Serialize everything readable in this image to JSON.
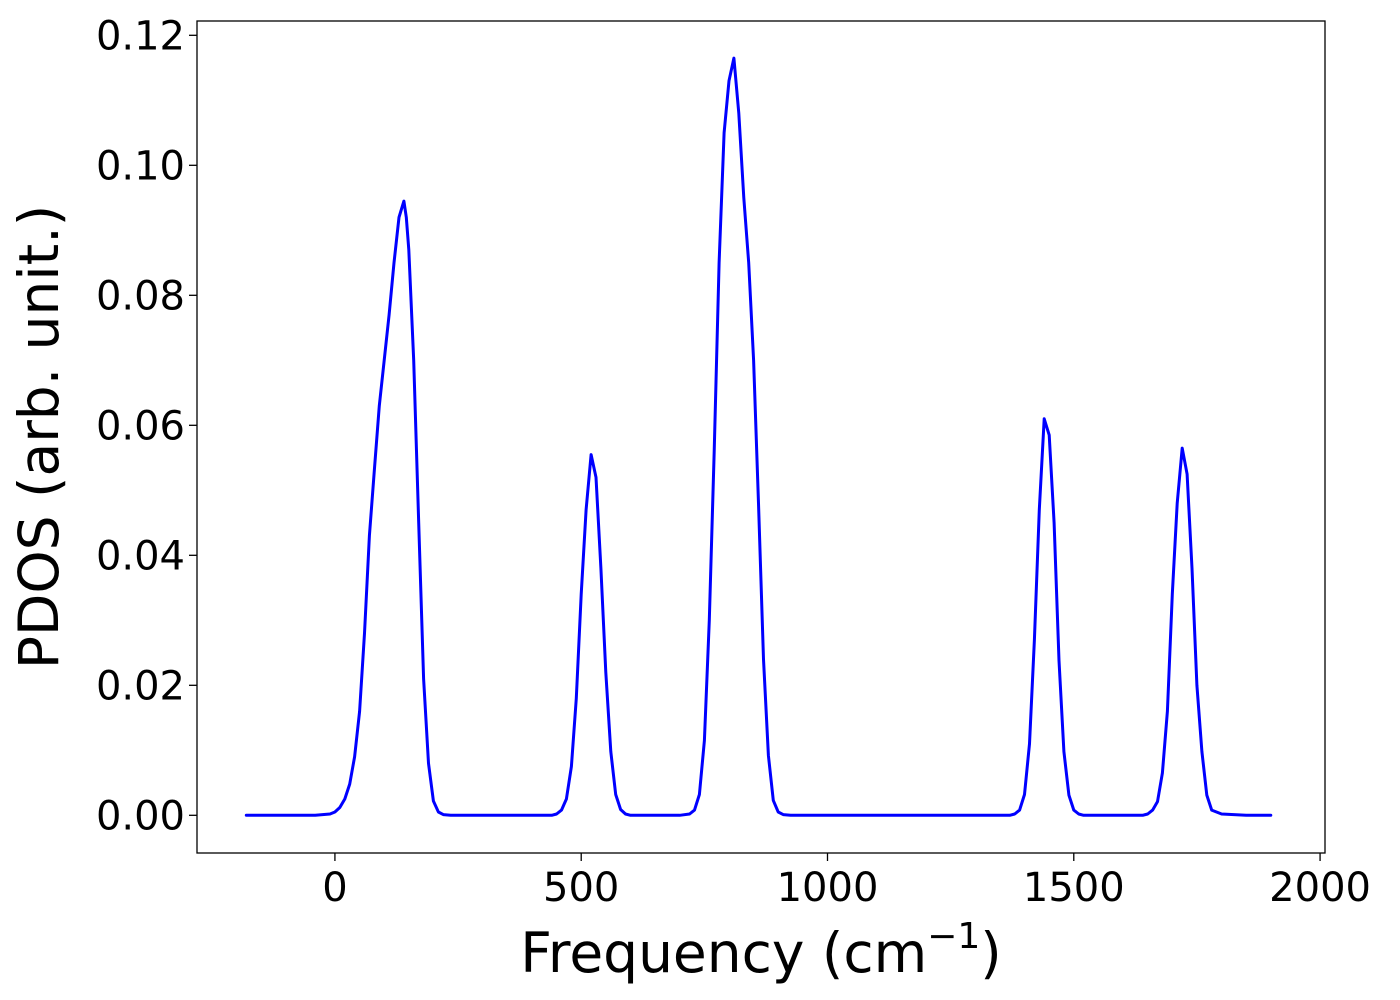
{
  "chart_data": {
    "type": "line",
    "xlabel": "Frequency (cm",
    "xlabel_superscript": "−1",
    "xlabel_close": ")",
    "ylabel": "PDOS (arb. unit.)",
    "xlim": [
      -280,
      2010
    ],
    "ylim": [
      -0.0058,
      0.1222
    ],
    "grid": false,
    "legend": "none",
    "x_ticks": [
      0,
      500,
      1000,
      1500,
      2000
    ],
    "y_ticks": [
      0.0,
      0.02,
      0.04,
      0.06,
      0.08,
      0.1,
      0.12
    ],
    "y_tick_decimals": 2,
    "colors": {
      "line": "#0000ff",
      "axes": "#000000",
      "background": "#ffffff"
    },
    "series": [
      {
        "x": [
          -180,
          -100,
          -40,
          -10,
          0,
          10,
          20,
          30,
          40,
          50,
          60,
          70,
          80,
          90,
          100,
          110,
          120,
          130,
          140,
          145,
          150,
          160,
          170,
          180,
          190,
          200,
          210,
          220,
          235,
          250,
          300,
          350,
          400,
          440,
          450,
          460,
          470,
          480,
          490,
          500,
          510,
          520,
          530,
          540,
          550,
          560,
          570,
          580,
          590,
          600,
          620,
          650,
          700,
          720,
          730,
          740,
          750,
          760,
          770,
          780,
          790,
          800,
          810,
          820,
          830,
          840,
          850,
          860,
          870,
          880,
          890,
          900,
          910,
          925,
          950,
          1000,
          1100,
          1200,
          1300,
          1370,
          1380,
          1390,
          1400,
          1410,
          1420,
          1430,
          1440,
          1450,
          1460,
          1470,
          1480,
          1490,
          1500,
          1510,
          1520,
          1540,
          1600,
          1640,
          1650,
          1660,
          1670,
          1680,
          1690,
          1700,
          1710,
          1720,
          1730,
          1740,
          1750,
          1760,
          1770,
          1780,
          1800,
          1850,
          1900
        ],
        "y": [
          0,
          0,
          0,
          0.0002,
          0.0005,
          0.0012,
          0.0025,
          0.0048,
          0.009,
          0.016,
          0.028,
          0.043,
          0.053,
          0.063,
          0.07,
          0.077,
          0.085,
          0.092,
          0.0945,
          0.092,
          0.087,
          0.07,
          0.045,
          0.021,
          0.008,
          0.0022,
          0.0005,
          0.0001,
          0,
          0,
          0,
          0,
          0,
          0,
          0.0002,
          0.0008,
          0.0025,
          0.0075,
          0.018,
          0.034,
          0.047,
          0.0555,
          0.052,
          0.038,
          0.022,
          0.0098,
          0.0032,
          0.0009,
          0.0002,
          0,
          0,
          0,
          0,
          0.0002,
          0.0008,
          0.0032,
          0.0115,
          0.03,
          0.056,
          0.085,
          0.105,
          0.113,
          0.1165,
          0.108,
          0.095,
          0.085,
          0.07,
          0.048,
          0.024,
          0.0092,
          0.0023,
          0.0005,
          0.0001,
          0,
          0,
          0,
          0,
          0,
          0,
          0,
          0.0002,
          0.0008,
          0.0032,
          0.011,
          0.027,
          0.047,
          0.061,
          0.0585,
          0.045,
          0.0238,
          0.0098,
          0.0031,
          0.0008,
          0.0002,
          0,
          0,
          0,
          0,
          0.0002,
          0.0008,
          0.0021,
          0.0065,
          0.016,
          0.034,
          0.048,
          0.0565,
          0.0525,
          0.038,
          0.02,
          0.0098,
          0.0031,
          0.0008,
          0.0002,
          0,
          0
        ]
      }
    ]
  }
}
